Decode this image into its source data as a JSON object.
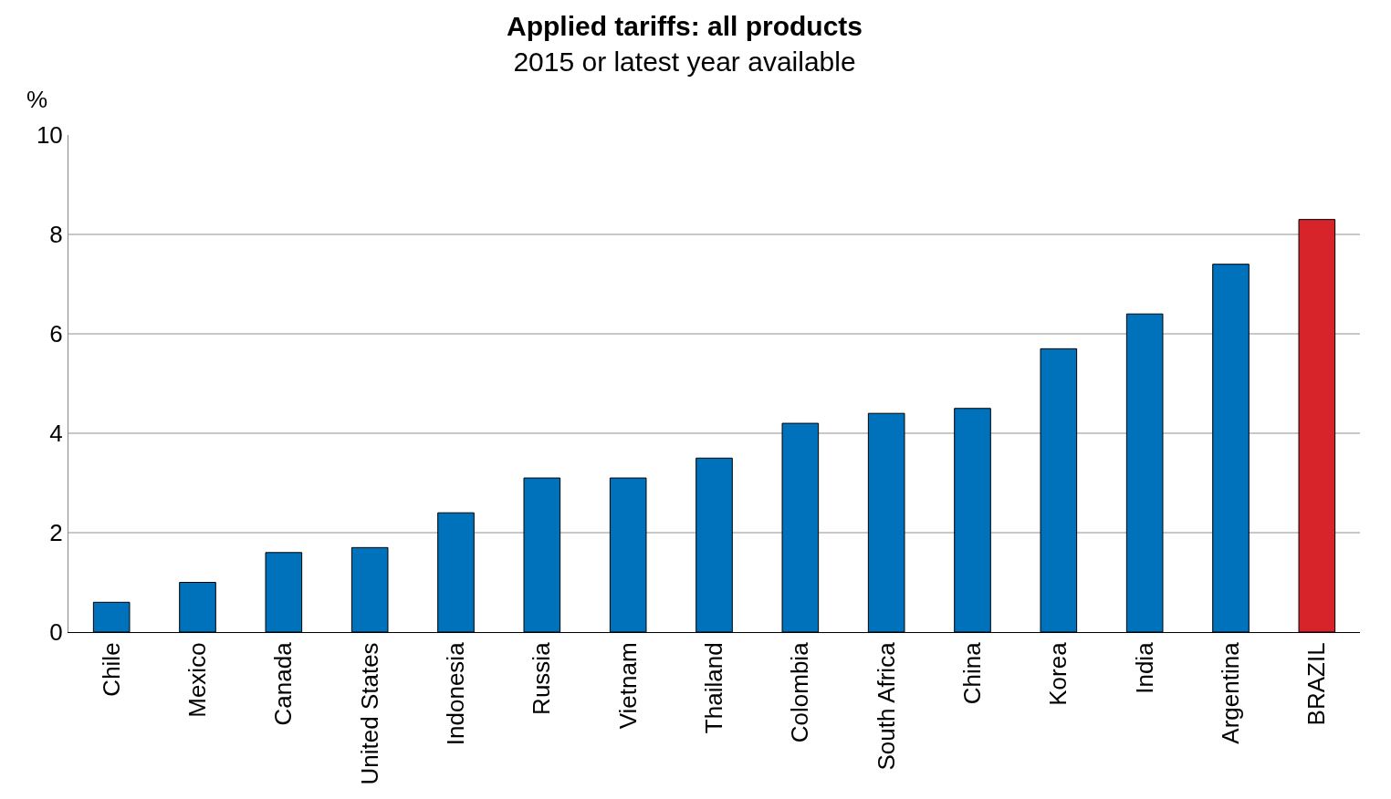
{
  "chart_data": {
    "type": "bar",
    "title": "Applied tariffs: all products",
    "subtitle": "2015 or latest year available",
    "ylabel": "%",
    "categories": [
      "Chile",
      "Mexico",
      "Canada",
      "United States",
      "Indonesia",
      "Russia",
      "Vietnam",
      "Thailand",
      "Colombia",
      "South Africa",
      "China",
      "Korea",
      "India",
      "Argentina",
      "BRAZIL"
    ],
    "values": [
      0.6,
      1.0,
      1.6,
      1.7,
      2.4,
      3.1,
      3.1,
      3.5,
      4.2,
      4.4,
      4.5,
      5.7,
      6.4,
      7.4,
      8.3
    ],
    "colors": [
      "#0072bc",
      "#0072bc",
      "#0072bc",
      "#0072bc",
      "#0072bc",
      "#0072bc",
      "#0072bc",
      "#0072bc",
      "#0072bc",
      "#0072bc",
      "#0072bc",
      "#0072bc",
      "#0072bc",
      "#0072bc",
      "#d7242b"
    ],
    "ylim": [
      0,
      10
    ],
    "yticks": [
      0,
      2,
      4,
      6,
      8,
      10
    ],
    "grid": "y"
  }
}
